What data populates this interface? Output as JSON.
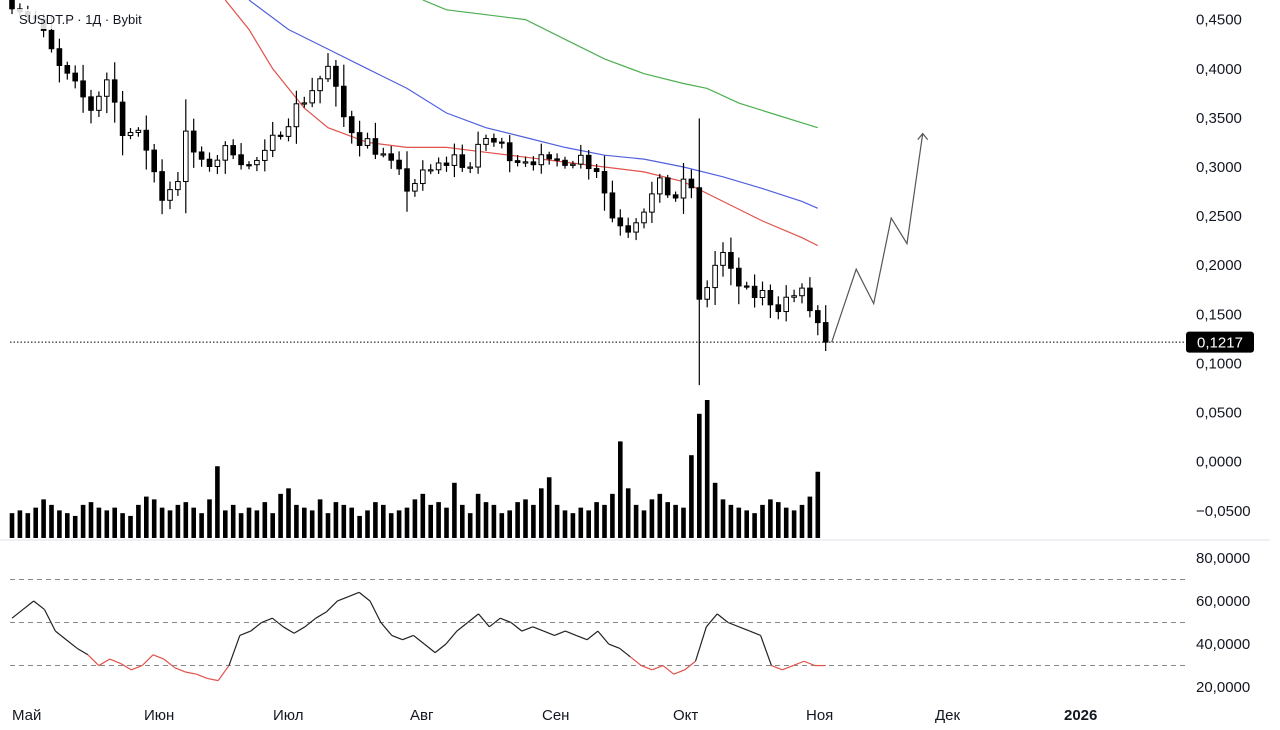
{
  "header": {
    "title": "SUSDT.P · 1Д · Bybit"
  },
  "colors": {
    "candle": "#000000",
    "volume": "#000000",
    "ma_fast": "#e0524a",
    "ma_mid": "#5060e0",
    "ma_slow": "#4caf50",
    "forecast": "#555555",
    "rsi_line": "#222222",
    "rsi_oversold": "#e0524a",
    "levels": "#888888",
    "price_tag_bg": "#000000"
  },
  "chart_data": [
    {
      "type": "candlestick",
      "name": "price",
      "title": "SUSDT.P · 1Д · Bybit",
      "ylim": [
        0.073,
        0.47
      ],
      "y_ticks": [
        "0,4500",
        "0,4000",
        "0,3500",
        "0,3000",
        "0,2500",
        "0,2000",
        "0,1500",
        "0,1000",
        "0,0500",
        "0,0000",
        "−0,0500"
      ],
      "y_tick_values": [
        0.45,
        0.4,
        0.35,
        0.3,
        0.25,
        0.2,
        0.15,
        0.1,
        0.05,
        0.0,
        -0.05
      ],
      "last_price": 0.1217,
      "last_price_label": "0,1217",
      "anchors": [
        [
          0,
          0.47
        ],
        [
          3,
          0.45
        ],
        [
          6,
          0.4
        ],
        [
          8,
          0.38
        ],
        [
          10,
          0.36
        ],
        [
          12,
          0.39
        ],
        [
          14,
          0.34
        ],
        [
          16,
          0.33
        ],
        [
          17,
          0.32
        ],
        [
          19,
          0.27
        ],
        [
          21,
          0.29
        ],
        [
          22,
          0.33
        ],
        [
          24,
          0.3
        ],
        [
          26,
          0.31
        ],
        [
          28,
          0.32
        ],
        [
          30,
          0.3
        ],
        [
          32,
          0.31
        ],
        [
          34,
          0.34
        ],
        [
          36,
          0.36
        ],
        [
          38,
          0.38
        ],
        [
          40,
          0.4
        ],
        [
          42,
          0.35
        ],
        [
          44,
          0.33
        ],
        [
          46,
          0.32
        ],
        [
          48,
          0.3
        ],
        [
          50,
          0.28
        ],
        [
          52,
          0.29
        ],
        [
          54,
          0.3
        ],
        [
          56,
          0.31
        ],
        [
          58,
          0.3
        ],
        [
          60,
          0.33
        ],
        [
          62,
          0.32
        ],
        [
          64,
          0.31
        ],
        [
          66,
          0.31
        ],
        [
          68,
          0.3
        ],
        [
          70,
          0.31
        ],
        [
          72,
          0.31
        ],
        [
          74,
          0.3
        ],
        [
          76,
          0.25
        ],
        [
          78,
          0.24
        ],
        [
          80,
          0.26
        ],
        [
          82,
          0.28
        ],
        [
          84,
          0.27
        ],
        [
          85,
          0.28
        ],
        [
          86,
          0.28
        ],
        [
          87,
          0.16
        ],
        [
          88,
          0.18
        ],
        [
          89,
          0.2
        ],
        [
          90,
          0.21
        ],
        [
          91,
          0.19
        ],
        [
          93,
          0.17
        ],
        [
          95,
          0.17
        ],
        [
          97,
          0.16
        ],
        [
          99,
          0.17
        ],
        [
          100,
          0.17
        ],
        [
          102,
          0.14
        ],
        [
          103,
          0.1217
        ]
      ],
      "wick_low_min": 0.078,
      "ma_fast": [
        [
          27,
          0.47
        ],
        [
          30,
          0.44
        ],
        [
          33,
          0.4
        ],
        [
          37,
          0.36
        ],
        [
          40,
          0.34
        ],
        [
          45,
          0.325
        ],
        [
          50,
          0.32
        ],
        [
          55,
          0.32
        ],
        [
          60,
          0.315
        ],
        [
          65,
          0.31
        ],
        [
          70,
          0.305
        ],
        [
          75,
          0.3
        ],
        [
          80,
          0.295
        ],
        [
          85,
          0.285
        ],
        [
          90,
          0.265
        ],
        [
          95,
          0.245
        ],
        [
          100,
          0.228
        ],
        [
          102,
          0.22
        ]
      ],
      "ma_mid": [
        [
          30,
          0.47
        ],
        [
          35,
          0.44
        ],
        [
          40,
          0.42
        ],
        [
          45,
          0.4
        ],
        [
          50,
          0.38
        ],
        [
          55,
          0.355
        ],
        [
          60,
          0.34
        ],
        [
          65,
          0.33
        ],
        [
          70,
          0.32
        ],
        [
          75,
          0.312
        ],
        [
          80,
          0.308
        ],
        [
          85,
          0.3
        ],
        [
          90,
          0.29
        ],
        [
          95,
          0.278
        ],
        [
          100,
          0.265
        ],
        [
          102,
          0.258
        ]
      ],
      "ma_slow": [
        [
          52,
          0.47
        ],
        [
          55,
          0.46
        ],
        [
          60,
          0.455
        ],
        [
          65,
          0.45
        ],
        [
          70,
          0.43
        ],
        [
          75,
          0.41
        ],
        [
          80,
          0.395
        ],
        [
          85,
          0.385
        ],
        [
          88,
          0.38
        ],
        [
          92,
          0.365
        ],
        [
          96,
          0.355
        ],
        [
          100,
          0.345
        ],
        [
          102,
          0.34
        ]
      ],
      "forecast": [
        [
          0,
          0.1217
        ],
        [
          1.4,
          0.196
        ],
        [
          2.4,
          0.161
        ],
        [
          3.4,
          0.248
        ],
        [
          4.3,
          0.222
        ],
        [
          5.2,
          0.334
        ]
      ],
      "volume": [
        9,
        10,
        9,
        11,
        14,
        12,
        10,
        9,
        8,
        12,
        13,
        11,
        10,
        11,
        9,
        8,
        12,
        15,
        14,
        11,
        10,
        12,
        13,
        11,
        9,
        14,
        26,
        10,
        12,
        9,
        11,
        10,
        13,
        9,
        16,
        18,
        12,
        11,
        10,
        14,
        9,
        13,
        12,
        11,
        8,
        10,
        13,
        12,
        9,
        10,
        11,
        14,
        16,
        12,
        13,
        11,
        20,
        12,
        9,
        16,
        13,
        12,
        9,
        10,
        13,
        14,
        12,
        18,
        22,
        12,
        10,
        9,
        11,
        10,
        13,
        12,
        16,
        35,
        18,
        12,
        10,
        14,
        16,
        13,
        12,
        11,
        30,
        45,
        50,
        20,
        14,
        12,
        11,
        10,
        9,
        12,
        14,
        13,
        11,
        10,
        12,
        15,
        24
      ]
    },
    {
      "type": "line",
      "name": "rsi",
      "ylim": [
        14,
        86
      ],
      "y_ticks": [
        "80,0000",
        "60,0000",
        "40,0000",
        "20,0000"
      ],
      "y_tick_values": [
        80,
        60,
        40,
        20
      ],
      "levels": [
        70,
        50,
        30
      ],
      "oversold": 35,
      "points": [
        [
          0,
          52
        ],
        [
          2,
          56
        ],
        [
          4,
          60
        ],
        [
          6,
          56
        ],
        [
          8,
          46
        ],
        [
          10,
          42
        ],
        [
          12,
          38
        ],
        [
          14,
          35
        ],
        [
          16,
          30
        ],
        [
          18,
          33
        ],
        [
          20,
          31
        ],
        [
          22,
          28
        ],
        [
          24,
          30
        ],
        [
          26,
          35
        ],
        [
          28,
          33
        ],
        [
          30,
          29
        ],
        [
          32,
          27
        ],
        [
          34,
          26
        ],
        [
          36,
          24
        ],
        [
          38,
          23
        ],
        [
          40,
          30
        ],
        [
          42,
          44
        ],
        [
          44,
          46
        ],
        [
          46,
          50
        ],
        [
          48,
          52
        ],
        [
          50,
          48
        ],
        [
          52,
          45
        ],
        [
          54,
          48
        ],
        [
          56,
          52
        ],
        [
          58,
          55
        ],
        [
          60,
          60
        ],
        [
          62,
          62
        ],
        [
          64,
          64
        ],
        [
          66,
          60
        ],
        [
          68,
          50
        ],
        [
          70,
          44
        ],
        [
          72,
          42
        ],
        [
          74,
          44
        ],
        [
          76,
          40
        ],
        [
          78,
          36
        ],
        [
          80,
          40
        ],
        [
          82,
          46
        ],
        [
          84,
          50
        ],
        [
          86,
          54
        ],
        [
          88,
          48
        ],
        [
          90,
          52
        ],
        [
          92,
          50
        ],
        [
          94,
          46
        ],
        [
          96,
          48
        ],
        [
          98,
          46
        ],
        [
          100,
          44
        ],
        [
          102,
          46
        ],
        [
          104,
          44
        ],
        [
          106,
          42
        ],
        [
          108,
          46
        ],
        [
          110,
          40
        ],
        [
          112,
          38
        ],
        [
          114,
          34
        ],
        [
          116,
          30
        ],
        [
          118,
          28
        ],
        [
          120,
          30
        ],
        [
          122,
          26
        ],
        [
          124,
          28
        ],
        [
          126,
          32
        ],
        [
          128,
          48
        ],
        [
          130,
          54
        ],
        [
          132,
          50
        ],
        [
          134,
          48
        ],
        [
          136,
          46
        ],
        [
          138,
          44
        ],
        [
          140,
          30
        ],
        [
          142,
          28
        ],
        [
          144,
          30
        ],
        [
          146,
          32
        ],
        [
          148,
          30
        ],
        [
          150,
          30
        ]
      ]
    }
  ],
  "time_axis": [
    {
      "label": "Май",
      "bold": false
    },
    {
      "label": "Июн",
      "bold": false
    },
    {
      "label": "Июл",
      "bold": false
    },
    {
      "label": "Авг",
      "bold": false
    },
    {
      "label": "Сен",
      "bold": false
    },
    {
      "label": "Окт",
      "bold": false
    },
    {
      "label": "Ноя",
      "bold": false
    },
    {
      "label": "Дек",
      "bold": false
    },
    {
      "label": "2026",
      "bold": true
    }
  ]
}
